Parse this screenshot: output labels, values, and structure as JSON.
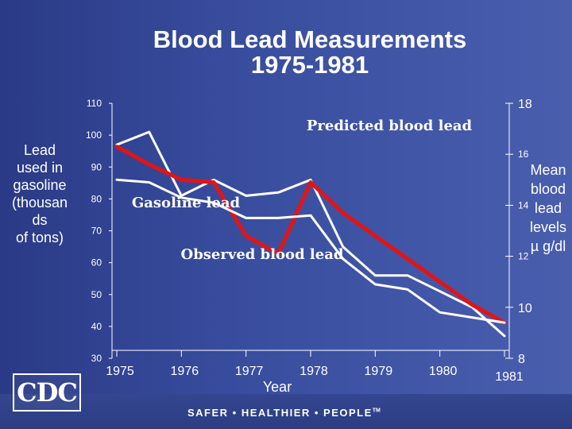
{
  "colors": {
    "background": "#3a4ea0",
    "gasoline_line": "#ffffff",
    "observed_line": "#e31414",
    "text": "#ffffff"
  },
  "chart_data": {
    "type": "line",
    "title": "Blood Lead Measurements 1975-1981",
    "title_lines": [
      "Blood Lead Measurements",
      "1975-1981"
    ],
    "xlabel": "Year",
    "x_ticks": [
      "1975",
      "1976",
      "1977",
      "1978",
      "1979",
      "1980",
      "1981"
    ],
    "x_range": [
      1975,
      1981
    ],
    "left_axis": {
      "title": "Lead used in gasoline (thousan ds of tons)",
      "title_lines": [
        "Lead",
        "used in",
        "gasoline",
        "(thousan",
        "ds",
        "of tons)"
      ],
      "ticks": [
        "110",
        "100",
        "90",
        "80",
        "70",
        "60",
        "50",
        "40",
        "30"
      ],
      "range": [
        30,
        110
      ]
    },
    "right_axis": {
      "title": "Mean blood lead levels µ g/dl",
      "title_lines": [
        "Mean",
        "blood",
        "lead",
        "levels",
        "µ g/dl"
      ],
      "ticks": [
        "18",
        "16",
        "14",
        "12",
        "10",
        "8"
      ],
      "range": [
        8,
        18
      ]
    },
    "series": [
      {
        "name": "Gasoline lead",
        "axis": "left",
        "x": [
          1975.0,
          1975.5,
          1976.0,
          1976.5,
          1977.0,
          1977.5,
          1978.0,
          1978.5,
          1979.0,
          1979.5,
          1980.0,
          1980.5,
          1981.0
        ],
        "y": [
          97,
          101,
          81,
          86,
          81,
          82,
          86,
          65,
          56,
          56,
          51,
          46,
          37
        ]
      },
      {
        "name": "Observed blood lead",
        "axis": "right",
        "x": [
          1975.0,
          1975.5,
          1976.0,
          1976.5,
          1977.0,
          1977.5,
          1978.0,
          1978.5,
          1979.0,
          1979.5,
          1980.0,
          1980.5,
          1981.0
        ],
        "y": [
          16.3,
          15.6,
          15.0,
          14.9,
          12.8,
          12.1,
          14.9,
          13.7,
          12.8,
          11.9,
          11.0,
          10.1,
          9.4
        ]
      },
      {
        "name": "Predicted blood lead",
        "axis": "right",
        "x": [
          1975.0,
          1975.5,
          1976.0,
          1976.5,
          1977.0,
          1977.5,
          1978.0,
          1978.5,
          1979.0,
          1979.5,
          1980.0,
          1980.5,
          1981.0
        ],
        "y": [
          15.0,
          14.9,
          14.3,
          14.1,
          13.5,
          13.5,
          13.6,
          11.9,
          10.9,
          10.7,
          9.8,
          9.6,
          9.4
        ]
      }
    ],
    "annotations": [
      "Predicted blood lead",
      "Gasoline lead",
      "Observed blood lead"
    ],
    "grid": false
  },
  "footer": {
    "logo_text": "CDC",
    "tagline": "SAFER • HEALTHIER • PEOPLE",
    "trademark": "TM"
  }
}
